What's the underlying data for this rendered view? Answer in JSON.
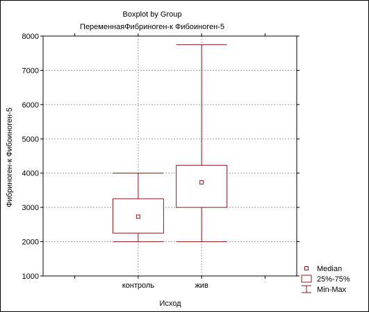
{
  "chart_data": {
    "type": "boxplot",
    "title": "Boxplot by Group",
    "subtitle": "ПеременнаяФибриноген-к Фибоиноген-5",
    "xlabel": "Исход",
    "ylabel": "Фибриноген-к Фибоиноген-5",
    "ylim": [
      1000,
      8000
    ],
    "yticks": [
      1000,
      2000,
      3000,
      4000,
      5000,
      6000,
      7000,
      8000
    ],
    "grid": true,
    "legend_position": "bottom-right",
    "colors": {
      "series": "#8b1a1a",
      "grid": "#a0a0a0",
      "axis": "#000000"
    },
    "categories": [
      "контроль",
      "жив"
    ],
    "boxes": [
      {
        "category": "контроль",
        "min": 2000,
        "q1": 2250,
        "median": 2730,
        "q3": 3250,
        "max": 4000
      },
      {
        "category": "жив",
        "min": 2000,
        "q1": 3000,
        "median": 3730,
        "q3": 4230,
        "max": 7750
      }
    ],
    "legend": [
      {
        "symbol": "median-marker",
        "label": "Median"
      },
      {
        "symbol": "box",
        "label": "25%-75%"
      },
      {
        "symbol": "whisker",
        "label": "Min-Max"
      }
    ]
  }
}
